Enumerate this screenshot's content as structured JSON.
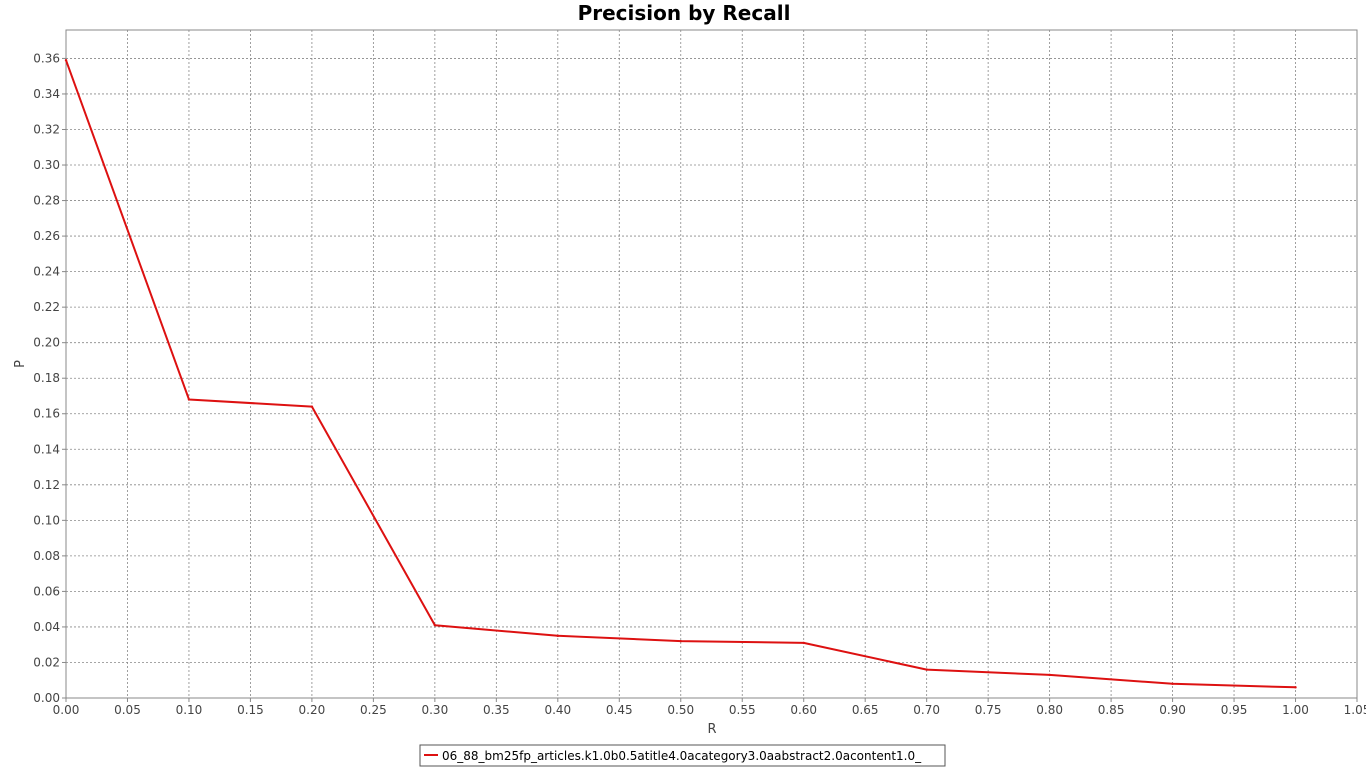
{
  "chart_data": {
    "type": "line",
    "title": "Precision by Recall",
    "xlabel": "R",
    "ylabel": "P",
    "xlim": [
      0.0,
      1.05
    ],
    "ylim": [
      0.0,
      0.376
    ],
    "x_ticks": [
      "0.00",
      "0.05",
      "0.10",
      "0.15",
      "0.20",
      "0.25",
      "0.30",
      "0.35",
      "0.40",
      "0.45",
      "0.50",
      "0.55",
      "0.60",
      "0.65",
      "0.70",
      "0.75",
      "0.80",
      "0.85",
      "0.90",
      "0.95",
      "1.00",
      "1.05"
    ],
    "y_ticks": [
      "0.00",
      "0.02",
      "0.04",
      "0.06",
      "0.08",
      "0.10",
      "0.12",
      "0.14",
      "0.16",
      "0.18",
      "0.20",
      "0.22",
      "0.24",
      "0.26",
      "0.28",
      "0.30",
      "0.32",
      "0.34",
      "0.36"
    ],
    "grid": true,
    "legend_position": "bottom-center",
    "series": [
      {
        "name": "06_88_bm25fp_articles.k1.0b0.5atitle4.0acategory3.0aabstract2.0acontent1.0_",
        "color": "#dd1111",
        "x": [
          0.0,
          0.1,
          0.2,
          0.3,
          0.4,
          0.5,
          0.6,
          0.7,
          0.8,
          0.9,
          1.0
        ],
        "y": [
          0.359,
          0.168,
          0.164,
          0.041,
          0.035,
          0.032,
          0.031,
          0.016,
          0.013,
          0.008,
          0.006
        ]
      }
    ]
  }
}
